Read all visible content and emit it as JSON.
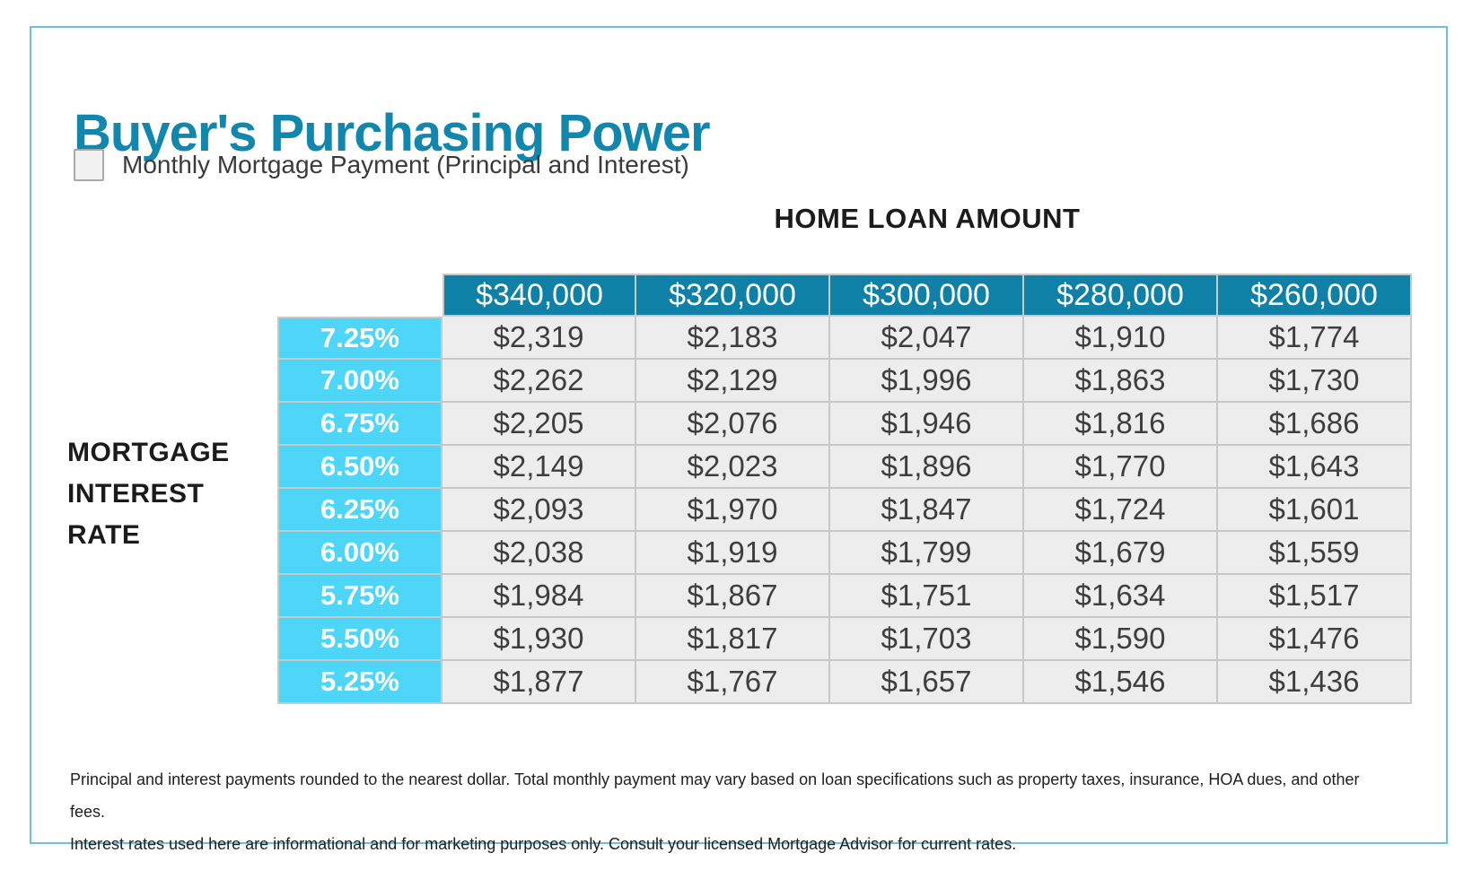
{
  "page": {
    "title": "Buyer's Purchasing Power",
    "legend_label": "Monthly Mortgage Payment (Principal and Interest)",
    "column_group_label": "HOME LOAN AMOUNT",
    "row_group_label_lines": [
      "MORTGAGE",
      "INTEREST",
      "RATE"
    ],
    "footnote_line1": "Principal and interest payments rounded to the nearest dollar. Total monthly payment may vary based on loan specifications such as property taxes, insurance, HOA dues, and other fees.",
    "footnote_line2": "Interest rates used here are informational and for marketing purposes only. Consult your licensed Mortgage Advisor for current rates."
  },
  "colors": {
    "title_teal": "#1287AE",
    "header_teal": "#1081A6",
    "rate_cyan": "#4DD6F8",
    "data_cell_gray": "#EDEDED",
    "grid_line": "#C9C9C9",
    "frame_border": "#6FBEDA",
    "data_text": "#3E3E3E"
  },
  "chart_data": {
    "type": "table",
    "title": "Buyer's Purchasing Power",
    "subtitle": "Monthly Mortgage Payment (Principal and Interest)",
    "column_group_label": "HOME LOAN AMOUNT",
    "row_group_label": "MORTGAGE INTEREST RATE",
    "columns": [
      "$340,000",
      "$320,000",
      "$300,000",
      "$280,000",
      "$260,000"
    ],
    "rows": [
      "7.25%",
      "7.00%",
      "6.75%",
      "6.50%",
      "6.25%",
      "6.00%",
      "5.75%",
      "5.50%",
      "5.25%"
    ],
    "values": [
      [
        "$2,319",
        "$2,183",
        "$2,047",
        "$1,910",
        "$1,774"
      ],
      [
        "$2,262",
        "$2,129",
        "$1,996",
        "$1,863",
        "$1,730"
      ],
      [
        "$2,205",
        "$2,076",
        "$1,946",
        "$1,816",
        "$1,686"
      ],
      [
        "$2,149",
        "$2,023",
        "$1,896",
        "$1,770",
        "$1,643"
      ],
      [
        "$2,093",
        "$1,970",
        "$1,847",
        "$1,724",
        "$1,601"
      ],
      [
        "$2,038",
        "$1,919",
        "$1,799",
        "$1,679",
        "$1,559"
      ],
      [
        "$1,984",
        "$1,867",
        "$1,751",
        "$1,634",
        "$1,517"
      ],
      [
        "$1,930",
        "$1,817",
        "$1,703",
        "$1,590",
        "$1,476"
      ],
      [
        "$1,877",
        "$1,767",
        "$1,657",
        "$1,546",
        "$1,436"
      ]
    ]
  }
}
